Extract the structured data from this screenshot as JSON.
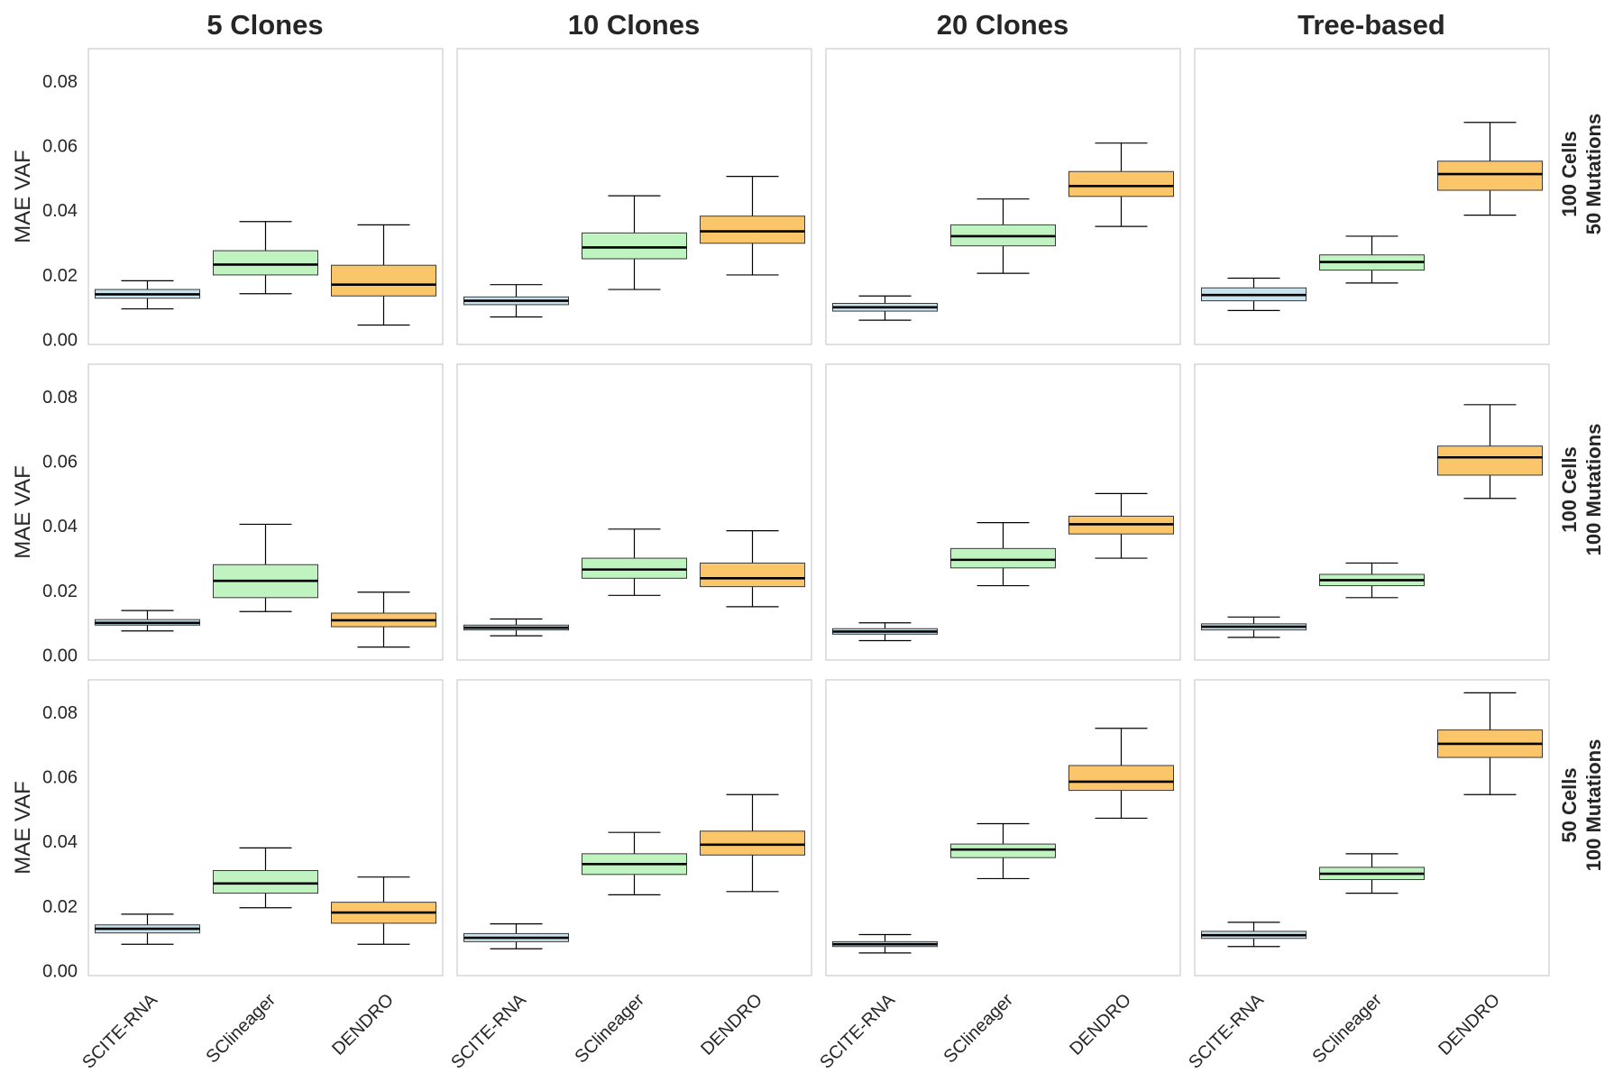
{
  "chart_data": {
    "type": "box",
    "layout": "faceted grid, 3 rows x 4 columns, shared y axis",
    "column_titles": [
      "5 Clones",
      "10 Clones",
      "20 Clones",
      "Tree-based"
    ],
    "row_labels": [
      [
        "100 Cells",
        "50 Mutations"
      ],
      [
        "100 Cells",
        "100 Mutations"
      ],
      [
        "50 Cells",
        "100 Mutations"
      ]
    ],
    "ylabel": "MAE VAF",
    "ylim": [
      -0.0015,
      0.09
    ],
    "yticks": [
      "0.00",
      "0.02",
      "0.04",
      "0.06",
      "0.08"
    ],
    "categories": [
      "SCITE-RNA",
      "SClineager",
      "DENDRO"
    ],
    "colors": {
      "SCITE-RNA": "#c9e3ee",
      "SClineager": "#bff3c0",
      "DENDRO": "#fbc66a"
    },
    "grid": false,
    "panels": [
      {
        "row": 0,
        "col": 0,
        "boxes": [
          {
            "method": "SCITE-RNA",
            "whislo": 0.0095,
            "q1": 0.0128,
            "med": 0.014,
            "q3": 0.0155,
            "whishi": 0.0182
          },
          {
            "method": "SClineager",
            "whislo": 0.0142,
            "q1": 0.02,
            "med": 0.0232,
            "q3": 0.0275,
            "whishi": 0.0365
          },
          {
            "method": "DENDRO",
            "whislo": 0.0045,
            "q1": 0.0135,
            "med": 0.017,
            "q3": 0.023,
            "whishi": 0.0355
          }
        ]
      },
      {
        "row": 0,
        "col": 1,
        "boxes": [
          {
            "method": "SCITE-RNA",
            "whislo": 0.007,
            "q1": 0.0108,
            "med": 0.012,
            "q3": 0.0132,
            "whishi": 0.017
          },
          {
            "method": "SClineager",
            "whislo": 0.0155,
            "q1": 0.025,
            "med": 0.0285,
            "q3": 0.033,
            "whishi": 0.0445
          },
          {
            "method": "DENDRO",
            "whislo": 0.02,
            "q1": 0.0298,
            "med": 0.0335,
            "q3": 0.0382,
            "whishi": 0.0505
          }
        ]
      },
      {
        "row": 0,
        "col": 2,
        "boxes": [
          {
            "method": "SCITE-RNA",
            "whislo": 0.006,
            "q1": 0.0088,
            "med": 0.01,
            "q3": 0.0112,
            "whishi": 0.0135
          },
          {
            "method": "SClineager",
            "whislo": 0.0205,
            "q1": 0.029,
            "med": 0.032,
            "q3": 0.0355,
            "whishi": 0.0435
          },
          {
            "method": "DENDRO",
            "whislo": 0.035,
            "q1": 0.0443,
            "med": 0.0475,
            "q3": 0.052,
            "whishi": 0.0608
          }
        ]
      },
      {
        "row": 0,
        "col": 3,
        "boxes": [
          {
            "method": "SCITE-RNA",
            "whislo": 0.009,
            "q1": 0.012,
            "med": 0.0138,
            "q3": 0.016,
            "whishi": 0.019
          },
          {
            "method": "SClineager",
            "whislo": 0.0175,
            "q1": 0.0215,
            "med": 0.024,
            "q3": 0.0262,
            "whishi": 0.032
          },
          {
            "method": "DENDRO",
            "whislo": 0.0385,
            "q1": 0.0462,
            "med": 0.0512,
            "q3": 0.0552,
            "whishi": 0.0672
          }
        ]
      },
      {
        "row": 1,
        "col": 0,
        "boxes": [
          {
            "method": "SCITE-RNA",
            "whislo": 0.0075,
            "q1": 0.0093,
            "med": 0.01,
            "q3": 0.011,
            "whishi": 0.0138
          },
          {
            "method": "SClineager",
            "whislo": 0.0135,
            "q1": 0.0178,
            "med": 0.023,
            "q3": 0.028,
            "whishi": 0.0405
          },
          {
            "method": "DENDRO",
            "whislo": 0.0025,
            "q1": 0.0088,
            "med": 0.0108,
            "q3": 0.013,
            "whishi": 0.0195
          }
        ]
      },
      {
        "row": 1,
        "col": 1,
        "boxes": [
          {
            "method": "SCITE-RNA",
            "whislo": 0.006,
            "q1": 0.0078,
            "med": 0.0085,
            "q3": 0.0093,
            "whishi": 0.0112
          },
          {
            "method": "SClineager",
            "whislo": 0.0185,
            "q1": 0.0238,
            "med": 0.0265,
            "q3": 0.03,
            "whishi": 0.039
          },
          {
            "method": "DENDRO",
            "whislo": 0.015,
            "q1": 0.0212,
            "med": 0.0238,
            "q3": 0.0285,
            "whishi": 0.0385
          }
        ]
      },
      {
        "row": 1,
        "col": 2,
        "boxes": [
          {
            "method": "SCITE-RNA",
            "whislo": 0.0045,
            "q1": 0.0065,
            "med": 0.0073,
            "q3": 0.0082,
            "whishi": 0.01
          },
          {
            "method": "SClineager",
            "whislo": 0.0215,
            "q1": 0.027,
            "med": 0.0295,
            "q3": 0.033,
            "whishi": 0.041
          },
          {
            "method": "DENDRO",
            "whislo": 0.03,
            "q1": 0.0375,
            "med": 0.0405,
            "q3": 0.043,
            "whishi": 0.05
          }
        ]
      },
      {
        "row": 1,
        "col": 3,
        "boxes": [
          {
            "method": "SCITE-RNA",
            "whislo": 0.0055,
            "q1": 0.0078,
            "med": 0.0088,
            "q3": 0.0097,
            "whishi": 0.0118
          },
          {
            "method": "SClineager",
            "whislo": 0.0178,
            "q1": 0.0215,
            "med": 0.0232,
            "q3": 0.025,
            "whishi": 0.0285
          },
          {
            "method": "DENDRO",
            "whislo": 0.0485,
            "q1": 0.0557,
            "med": 0.0612,
            "q3": 0.0647,
            "whishi": 0.0775
          }
        ]
      },
      {
        "row": 2,
        "col": 0,
        "boxes": [
          {
            "method": "SCITE-RNA",
            "whislo": 0.0082,
            "q1": 0.0117,
            "med": 0.013,
            "q3": 0.0142,
            "whishi": 0.0175
          },
          {
            "method": "SClineager",
            "whislo": 0.0195,
            "q1": 0.024,
            "med": 0.027,
            "q3": 0.031,
            "whishi": 0.038
          },
          {
            "method": "DENDRO",
            "whislo": 0.0082,
            "q1": 0.0147,
            "med": 0.018,
            "q3": 0.0212,
            "whishi": 0.029
          }
        ]
      },
      {
        "row": 2,
        "col": 1,
        "boxes": [
          {
            "method": "SCITE-RNA",
            "whislo": 0.0068,
            "q1": 0.009,
            "med": 0.0102,
            "q3": 0.0115,
            "whishi": 0.0145
          },
          {
            "method": "SClineager",
            "whislo": 0.0235,
            "q1": 0.0298,
            "med": 0.033,
            "q3": 0.0362,
            "whishi": 0.0428
          },
          {
            "method": "DENDRO",
            "whislo": 0.0245,
            "q1": 0.0358,
            "med": 0.039,
            "q3": 0.0432,
            "whishi": 0.0545
          }
        ]
      },
      {
        "row": 2,
        "col": 2,
        "boxes": [
          {
            "method": "SCITE-RNA",
            "whislo": 0.0055,
            "q1": 0.0075,
            "med": 0.0082,
            "q3": 0.009,
            "whishi": 0.0112
          },
          {
            "method": "SClineager",
            "whislo": 0.0285,
            "q1": 0.035,
            "med": 0.0375,
            "q3": 0.0392,
            "whishi": 0.0455
          },
          {
            "method": "DENDRO",
            "whislo": 0.0472,
            "q1": 0.0558,
            "med": 0.0585,
            "q3": 0.0635,
            "whishi": 0.075
          }
        ]
      },
      {
        "row": 2,
        "col": 3,
        "boxes": [
          {
            "method": "SCITE-RNA",
            "whislo": 0.0075,
            "q1": 0.01,
            "med": 0.011,
            "q3": 0.0122,
            "whishi": 0.015
          },
          {
            "method": "SClineager",
            "whislo": 0.024,
            "q1": 0.0282,
            "med": 0.03,
            "q3": 0.032,
            "whishi": 0.0362
          },
          {
            "method": "DENDRO",
            "whislo": 0.0545,
            "q1": 0.066,
            "med": 0.0702,
            "q3": 0.0745,
            "whishi": 0.086
          }
        ]
      }
    ]
  }
}
